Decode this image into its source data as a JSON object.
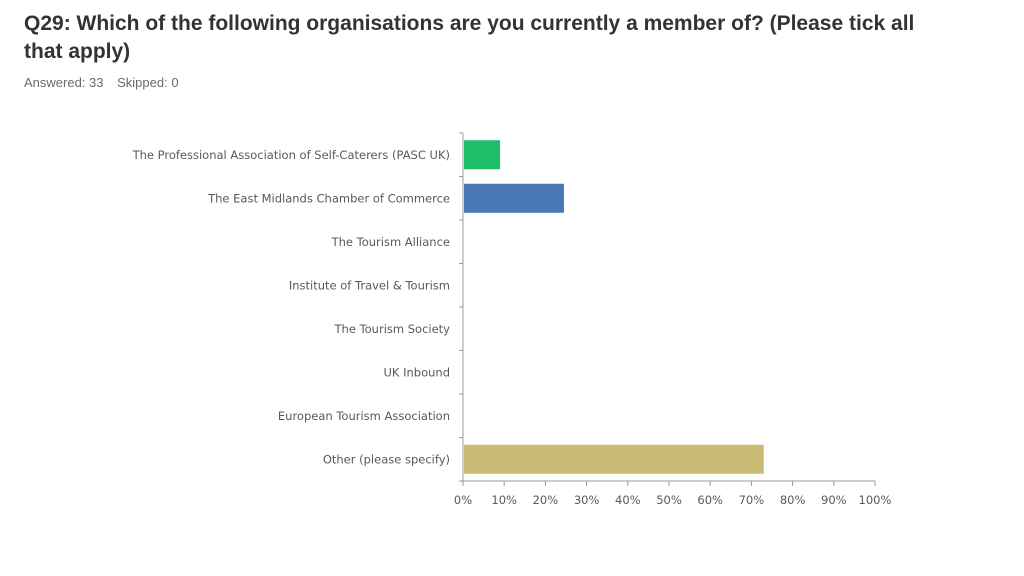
{
  "title": "Q29: Which of the following organisations are you currently a member of? (Please tick all that apply)",
  "answered_text": "Answered: 33",
  "skipped_text": "Skipped: 0",
  "colors": {
    "axis": "#9a9a9a",
    "label": "#595959",
    "bars": [
      "#1ebd6a",
      "#4a78b6",
      "#4a78b6",
      "#4a78b6",
      "#4a78b6",
      "#4a78b6",
      "#4a78b6",
      "#c9bb76"
    ]
  },
  "chart_data": {
    "type": "bar",
    "orientation": "horizontal",
    "categories": [
      "The Professional Association of Self-Caterers (PASC UK)",
      "The East Midlands Chamber of Commerce",
      "The Tourism Alliance",
      "Institute of Travel & Tourism",
      "The Tourism Society",
      "UK Inbound",
      "European Tourism Association",
      "Other (please specify)"
    ],
    "values": [
      9,
      24.5,
      0,
      0,
      0,
      0,
      0,
      73
    ],
    "xlim": [
      0,
      100
    ],
    "xticks": [
      "0%",
      "10%",
      "20%",
      "30%",
      "40%",
      "50%",
      "60%",
      "70%",
      "80%",
      "90%",
      "100%"
    ],
    "grid": false,
    "legend": "none"
  }
}
